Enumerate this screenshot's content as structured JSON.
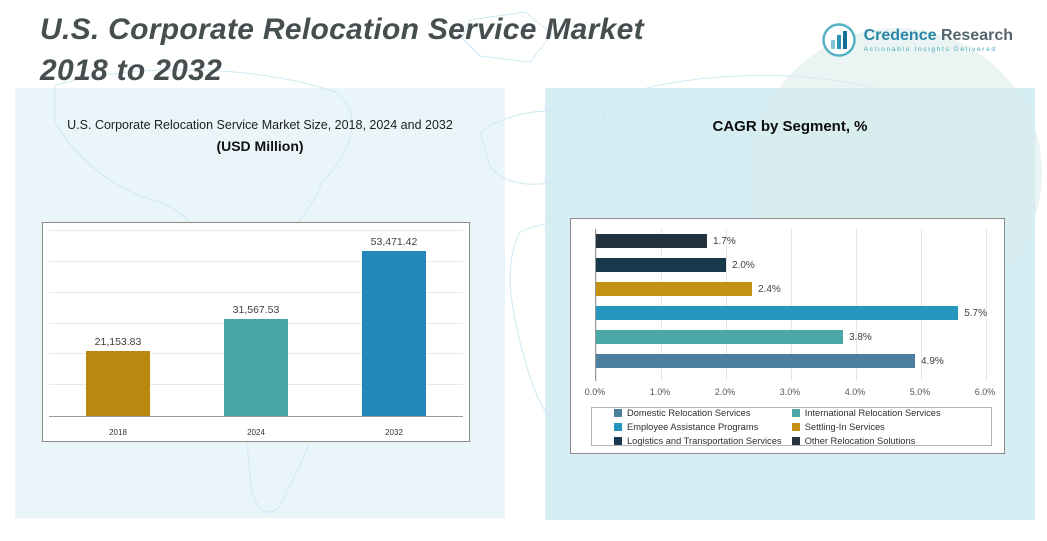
{
  "header": {
    "title_line1": "U.S. Corporate Relocation Service Market",
    "title_line2": "2018 to 2032"
  },
  "logo": {
    "brand_first": "Credence",
    "brand_second": " Research",
    "tagline": "Actionable Insights Delivered"
  },
  "chart_data": [
    {
      "type": "bar",
      "title": "U.S. Corporate Relocation Service Market Size, 2018, 2024 and 2032",
      "subtitle": "(USD Million)",
      "categories": [
        "2018",
        "2024",
        "2032"
      ],
      "values": [
        21153.83,
        31567.53,
        53471.42
      ],
      "value_labels": [
        "21,153.83",
        "31,567.53",
        "53,471.42"
      ],
      "colors": [
        "#b8890e",
        "#4aa5a5",
        "#2188b9"
      ],
      "ylim": [
        0,
        60000
      ],
      "grid": true,
      "legend_position": "none"
    },
    {
      "type": "bar",
      "orientation": "horizontal",
      "title": "CAGR by Segment, %",
      "xlim": [
        0,
        6
      ],
      "x_ticks": [
        "0.0%",
        "1.0%",
        "2.0%",
        "3.0%",
        "4.0%",
        "5.0%",
        "6.0%"
      ],
      "series": [
        {
          "name": "Other Relocation Solutions",
          "value": 1.7,
          "label": "1.7%",
          "color": "#22333f"
        },
        {
          "name": "Logistics and Transportation Services",
          "value": 2.0,
          "label": "2.0%",
          "color": "#17394c"
        },
        {
          "name": "Settling-In Services",
          "value": 2.4,
          "label": "2.4%",
          "color": "#c39114"
        },
        {
          "name": "Employee Assistance Programs",
          "value": 5.7,
          "label": "5.7%",
          "color": "#2596be"
        },
        {
          "name": "International Relocation Services",
          "value": 3.8,
          "label": "3.8%",
          "color": "#4ba6a6"
        },
        {
          "name": "Domestic Relocation Services",
          "value": 4.9,
          "label": "4.9%",
          "color": "#4c7f9e"
        }
      ],
      "legend": [
        {
          "name": "Domestic Relocation Services",
          "color": "#4c7f9e"
        },
        {
          "name": "International Relocation Services",
          "color": "#4ba6a6"
        },
        {
          "name": "Employee Assistance Programs",
          "color": "#2596be"
        },
        {
          "name": "Settling-In Services",
          "color": "#c39114"
        },
        {
          "name": "Logistics and Transportation Services",
          "color": "#17394c"
        },
        {
          "name": "Other Relocation Solutions",
          "color": "#22333f"
        }
      ],
      "grid": true,
      "legend_position": "bottom"
    }
  ]
}
